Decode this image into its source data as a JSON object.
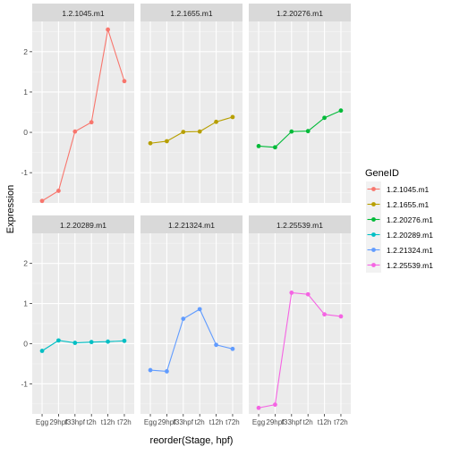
{
  "chart_data": {
    "type": "line",
    "facet": "wrap",
    "xlabel": "reorder(Stage, hpf)",
    "ylabel": "Expression",
    "categories": [
      "Egg",
      "29hpf",
      "33hpf",
      "t2h",
      "t12h",
      "t72h"
    ],
    "tick_labels": [
      "Egg",
      "29hpf",
      "f33hpf",
      "t2h",
      "t12h",
      "t72h"
    ],
    "ylim": [
      -1.75,
      2.75
    ],
    "yticks": [
      -1,
      0,
      1,
      2
    ],
    "grid": true,
    "legend_title": "GeneID",
    "legend_placement": "right",
    "series": [
      {
        "name": "1.2.1045.m1",
        "color": "#F8766D",
        "values": [
          -1.7,
          -1.45,
          0.02,
          0.25,
          2.55,
          1.27
        ]
      },
      {
        "name": "1.2.1655.m1",
        "color": "#B79F00",
        "values": [
          -0.27,
          -0.22,
          0.01,
          0.02,
          0.26,
          0.38
        ]
      },
      {
        "name": "1.2.20276.m1",
        "color": "#00BA38",
        "values": [
          -0.34,
          -0.37,
          0.02,
          0.03,
          0.36,
          0.54
        ]
      },
      {
        "name": "1.2.20289.m1",
        "color": "#00BFC4",
        "values": [
          -0.18,
          0.08,
          0.02,
          0.04,
          0.05,
          0.07
        ]
      },
      {
        "name": "1.2.21324.m1",
        "color": "#619CFF",
        "values": [
          -0.66,
          -0.69,
          0.62,
          0.86,
          -0.03,
          -0.13
        ]
      },
      {
        "name": "1.2.25539.m1",
        "color": "#F564E3",
        "values": [
          -1.6,
          -1.52,
          1.27,
          1.23,
          0.73,
          0.68
        ]
      }
    ]
  }
}
